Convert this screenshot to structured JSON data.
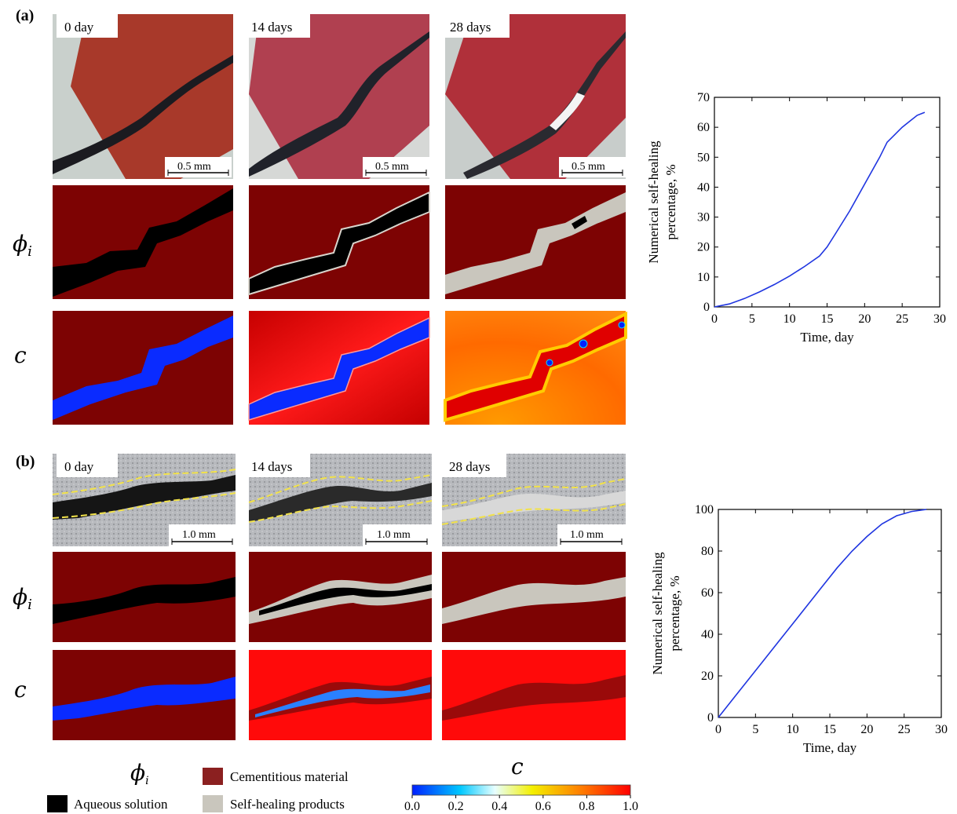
{
  "figure": {
    "panel_a_label": "(a)",
    "panel_b_label": "(b)",
    "day_labels": [
      "0 day",
      "14 days",
      "28 days"
    ],
    "scale_a": "0.5 mm",
    "scale_b": "1.0 mm",
    "row_phi": "ϕi",
    "row_phi_base": "ϕ",
    "row_phi_sub": "i",
    "row_c": "c"
  },
  "legend": {
    "phi_base": "ϕ",
    "phi_sub": "i",
    "cementitious": "Cementitious material",
    "aqueous": "Aqueous solution",
    "self_healing": "Self-healing products",
    "colorbar_title": "c",
    "colorbar_ticks": [
      "0.0",
      "0.2",
      "0.4",
      "0.6",
      "0.8",
      "1.0"
    ],
    "colors": {
      "cementitious": "#8b2020",
      "aqueous": "#000000",
      "self_healing": "#c9c6bd"
    }
  },
  "chart_data": [
    {
      "type": "line",
      "title": "",
      "xlabel": "Time, day",
      "ylabel_line1": "Numerical self-healing",
      "ylabel_line2": "percentage, %",
      "xlim": [
        0,
        30
      ],
      "ylim": [
        0,
        70
      ],
      "xticks": [
        "0",
        "5",
        "10",
        "15",
        "20",
        "25",
        "30"
      ],
      "yticks": [
        "0",
        "10",
        "20",
        "30",
        "40",
        "50",
        "60",
        "70"
      ],
      "x": [
        0,
        2,
        4,
        6,
        8,
        10,
        12,
        14,
        15,
        16,
        18,
        20,
        22,
        23,
        24,
        25,
        26,
        27,
        28
      ],
      "y": [
        0,
        1,
        2.8,
        5,
        7.5,
        10.3,
        13.5,
        17,
        20,
        24,
        32,
        41,
        50,
        55,
        57.5,
        60,
        62,
        64,
        65
      ],
      "color": "#1f35e0"
    },
    {
      "type": "line",
      "title": "",
      "xlabel": "Time, day",
      "ylabel_line1": "Numerical self-healing",
      "ylabel_line2": "percentage, %",
      "xlim": [
        0,
        30
      ],
      "ylim": [
        0,
        100
      ],
      "xticks": [
        "0",
        "5",
        "10",
        "15",
        "20",
        "25",
        "30"
      ],
      "yticks": [
        "0",
        "20",
        "40",
        "60",
        "80",
        "100"
      ],
      "x": [
        0,
        2,
        4,
        6,
        8,
        10,
        12,
        14,
        16,
        18,
        20,
        22,
        24,
        26,
        28
      ],
      "y": [
        0,
        9,
        18,
        27,
        36,
        45,
        54,
        63,
        72,
        80,
        87,
        93,
        97,
        99,
        100
      ],
      "color": "#1f35e0"
    }
  ]
}
